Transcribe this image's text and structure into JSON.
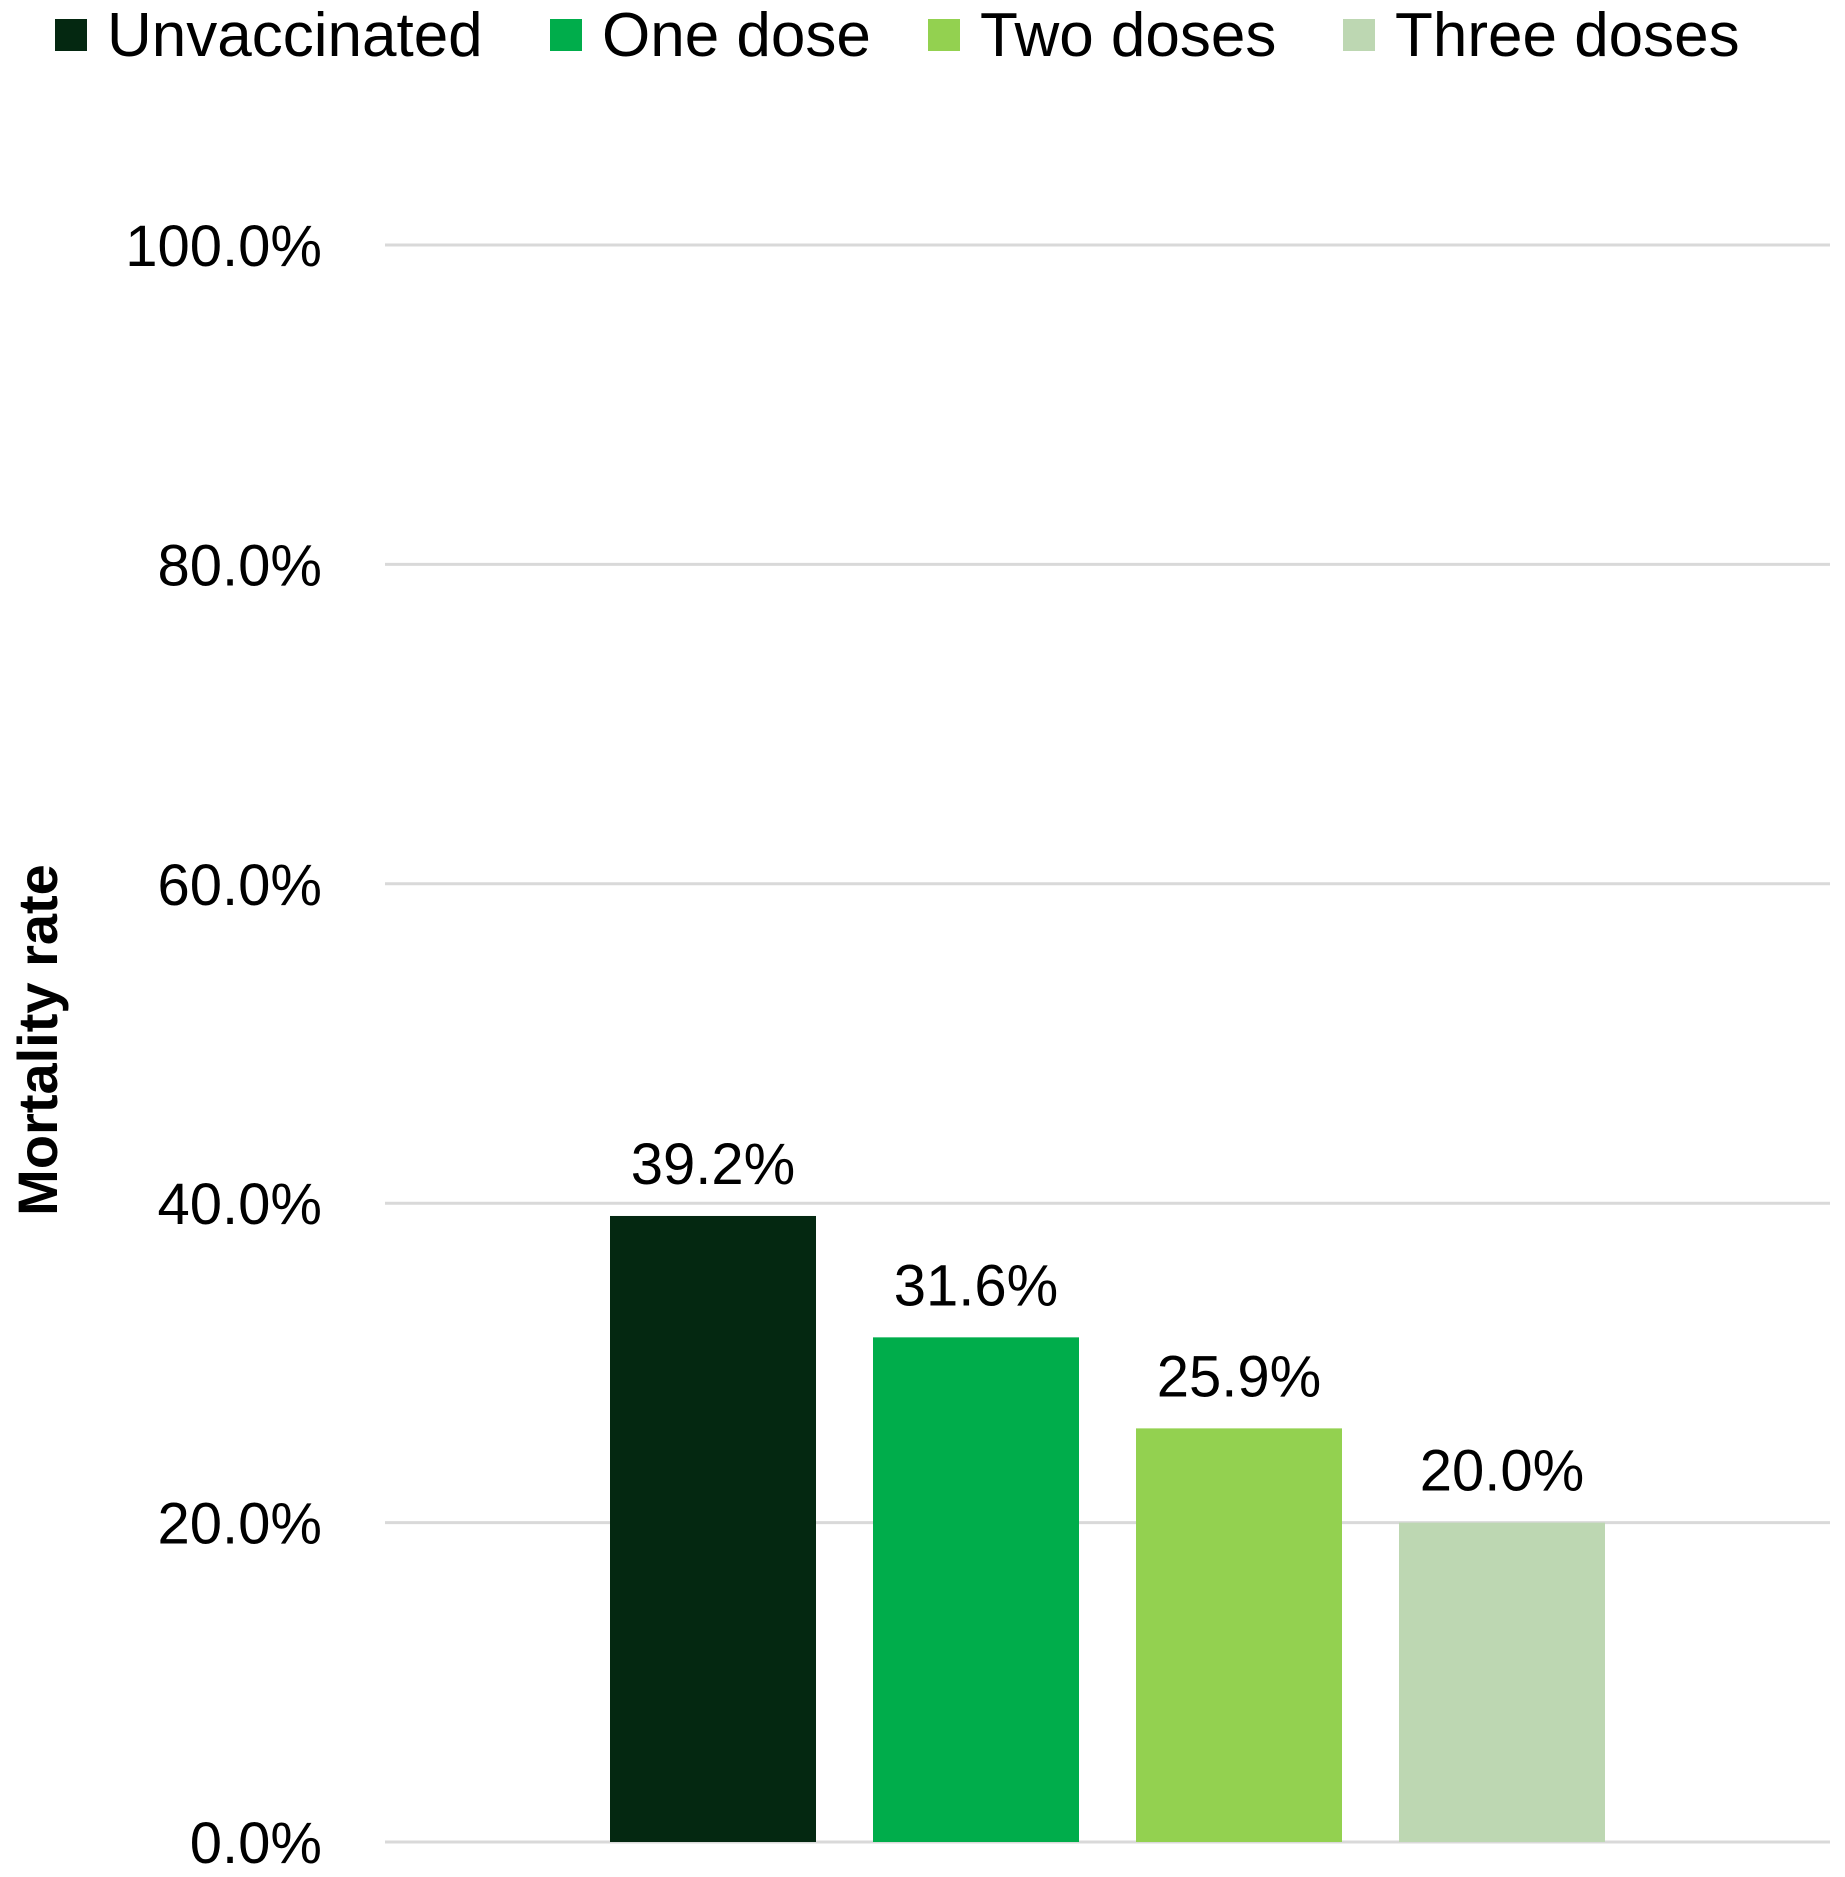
{
  "chart_data": {
    "type": "bar",
    "title": "",
    "xlabel": "",
    "ylabel": "Mortality rate",
    "ylim": [
      0,
      100
    ],
    "yticks": [
      0,
      20,
      40,
      60,
      80,
      100
    ],
    "ytick_labels": [
      "0.0%",
      "20.0%",
      "40.0%",
      "60.0%",
      "80.0%",
      "100.0%"
    ],
    "grid": true,
    "legend_position": "top",
    "categories": [
      ""
    ],
    "series": [
      {
        "name": "Unvaccinated",
        "values": [
          39.2
        ],
        "labels": [
          "39.2%"
        ],
        "color": "#042811"
      },
      {
        "name": "One dose",
        "values": [
          31.6
        ],
        "labels": [
          "31.6%"
        ],
        "color": "#00AD4B"
      },
      {
        "name": "Two doses",
        "values": [
          25.9
        ],
        "labels": [
          "25.9%"
        ],
        "color": "#93D150"
      },
      {
        "name": "Three doses",
        "values": [
          20.0
        ],
        "labels": [
          "20.0%"
        ],
        "color": "#BDD7B2"
      }
    ]
  }
}
